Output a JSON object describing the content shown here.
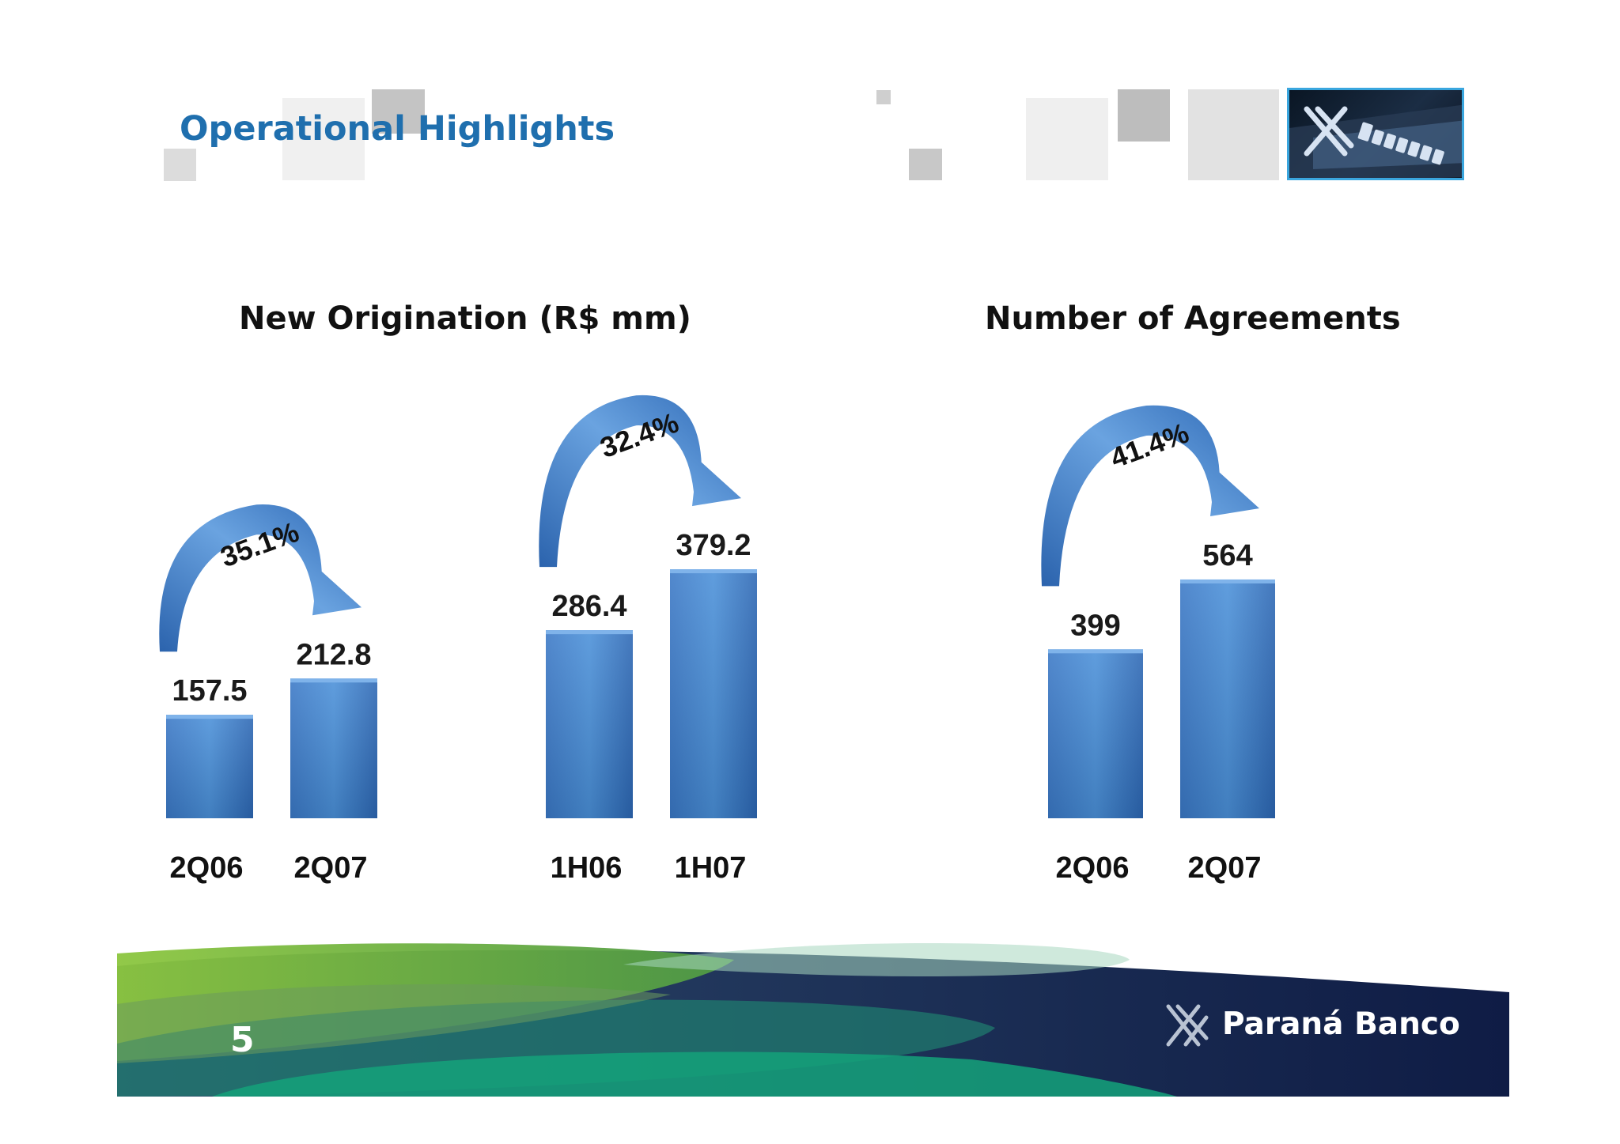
{
  "slide": {
    "title": "Operational Highlights",
    "page_number": "5",
    "brand": "Paraná Banco"
  },
  "icons": [
    "parana-banco-logo-icon",
    "growth-arrow-icon"
  ],
  "colors": {
    "title": "#1f6fae",
    "bar_top": "#4a90d9",
    "bar_bottom": "#2c67b4",
    "arrow": "#2f6db8",
    "footer_navy": "#1a2f5a",
    "footer_green": "#8cc63f",
    "footer_teal": "#0f9b7a"
  },
  "chart_data": [
    {
      "type": "bar",
      "title": "New Origination (R$ mm)",
      "groups": [
        {
          "categories": [
            "2Q06",
            "2Q07"
          ],
          "values": [
            157.5,
            212.8
          ],
          "labels": [
            "157.5",
            "212.8"
          ],
          "growth": "35.1%"
        },
        {
          "categories": [
            "1H06",
            "1H07"
          ],
          "values": [
            286.4,
            379.2
          ],
          "labels": [
            "286.4",
            "379.2"
          ],
          "growth": "32.4%"
        }
      ],
      "ylim": [
        0,
        420
      ],
      "grid": false
    },
    {
      "type": "bar",
      "title": "Number of Agreements",
      "groups": [
        {
          "categories": [
            "2Q06",
            "2Q07"
          ],
          "values": [
            399,
            564
          ],
          "labels": [
            "399",
            "564"
          ],
          "growth": "41.4%"
        }
      ],
      "ylim": [
        0,
        620
      ],
      "grid": false
    }
  ]
}
